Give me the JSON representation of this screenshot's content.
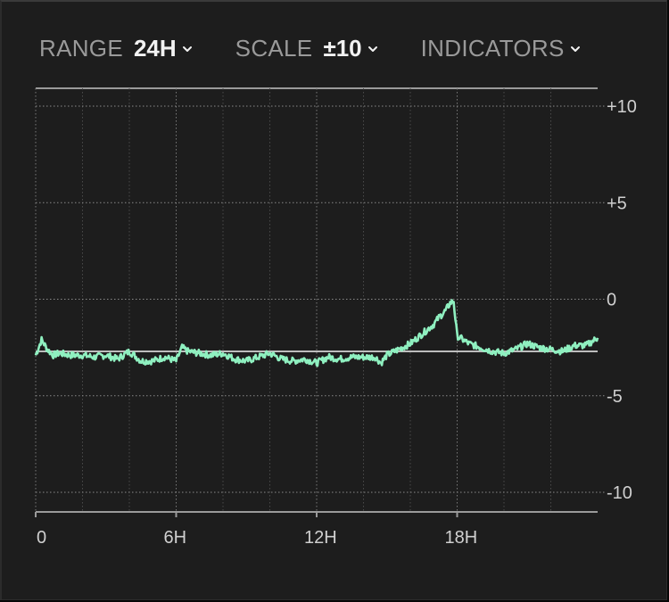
{
  "toolbar": {
    "range_label": "RANGE",
    "range_value": "24H",
    "scale_label": "SCALE",
    "scale_value": "±10",
    "indicators_label": "INDICATORS"
  },
  "colors": {
    "background": "#1d1d1d",
    "line": "#8ff0c0",
    "baseline": "#bdbdbd",
    "grid": "#6a6a6a",
    "text_dim": "#9a9a9a",
    "text_bright": "#f2f2f2"
  },
  "chart_data": {
    "type": "line",
    "xlim": [
      0,
      24
    ],
    "ylim": [
      -10,
      10
    ],
    "grid": true,
    "x_tick_labels": [
      {
        "x": 0,
        "label": "0"
      },
      {
        "x": 6,
        "label": "6H"
      },
      {
        "x": 12,
        "label": "12H"
      },
      {
        "x": 18,
        "label": "18H"
      }
    ],
    "y_tick_labels": [
      {
        "y": 10,
        "label": "+10"
      },
      {
        "y": 5,
        "label": "+5"
      },
      {
        "y": 0,
        "label": "0"
      },
      {
        "y": -5,
        "label": "-5"
      },
      {
        "y": -10,
        "label": "-10"
      }
    ],
    "baseline": -2.7,
    "series": [
      {
        "x": [
          0,
          0.25,
          0.5,
          0.75,
          1,
          1.5,
          2,
          2.5,
          3,
          3.5,
          4,
          4.5,
          5,
          5.5,
          6,
          6.25,
          6.5,
          7,
          7.5,
          8,
          8.5,
          9,
          9.5,
          10,
          10.5,
          11,
          11.5,
          12,
          12.5,
          13,
          13.5,
          14,
          14.5,
          14.75,
          15,
          15.5,
          16,
          16.5,
          17,
          17.25,
          17.5,
          17.7,
          17.85,
          18,
          18.5,
          19,
          19.5,
          20,
          20.5,
          21,
          21.5,
          22,
          22.5,
          23,
          23.5,
          24
        ],
        "y": [
          -2.9,
          -2.1,
          -2.6,
          -2.9,
          -2.8,
          -2.9,
          -2.9,
          -3.0,
          -2.9,
          -3.1,
          -2.7,
          -3.2,
          -3.2,
          -3.0,
          -3.2,
          -2.5,
          -2.7,
          -2.8,
          -2.9,
          -2.8,
          -3.1,
          -3.2,
          -3.0,
          -2.8,
          -3.1,
          -3.2,
          -3.1,
          -3.3,
          -3.0,
          -3.1,
          -3.0,
          -3.0,
          -3.0,
          -3.3,
          -2.9,
          -2.6,
          -2.3,
          -1.8,
          -1.3,
          -0.9,
          -0.6,
          -0.2,
          -0.1,
          -1.9,
          -2.3,
          -2.5,
          -2.7,
          -2.8,
          -2.6,
          -2.3,
          -2.5,
          -2.6,
          -2.7,
          -2.4,
          -2.4,
          -2.0
        ]
      }
    ]
  }
}
